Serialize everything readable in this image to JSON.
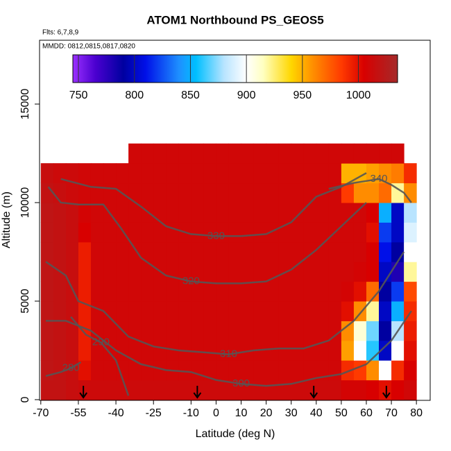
{
  "chart_data": {
    "type": "curtain",
    "title": "ATOM1 Northbound PS_GEOS5",
    "subtitle": "Flts: 6,7,8,9",
    "annotation": "MMDD: 0812,0815,0817,0820",
    "xlabel": "Latitude (deg N)",
    "ylabel": "Altitude (m)",
    "xlim": [
      -70.5,
      85.5
    ],
    "ylim": [
      0,
      18240
    ],
    "xticks": [
      -70,
      -55,
      -40,
      -25,
      -10,
      0,
      10,
      20,
      30,
      40,
      50,
      60,
      70,
      80
    ],
    "yticks": [
      0,
      5000,
      10000,
      15000
    ],
    "colorbar_lim": [
      745,
      1035
    ],
    "colorbar_ticks": [
      750,
      800,
      850,
      900,
      950,
      1000
    ],
    "colorscale": [
      [
        745,
        "#9b30ff"
      ],
      [
        765,
        "#4b00d0"
      ],
      [
        790,
        "#0000a0"
      ],
      [
        810,
        "#0010e8"
      ],
      [
        840,
        "#1e90ff"
      ],
      [
        855,
        "#00bfff"
      ],
      [
        880,
        "#b8e4ff"
      ],
      [
        900,
        "#ffffff"
      ],
      [
        915,
        "#ffffc0"
      ],
      [
        940,
        "#ffd700"
      ],
      [
        960,
        "#ff8c00"
      ],
      [
        985,
        "#ff3a00"
      ],
      [
        1005,
        "#d80000"
      ],
      [
        1035,
        "#a52a2a"
      ]
    ],
    "xbins": [
      -70,
      -65,
      -60,
      -55,
      -50,
      -45,
      -40,
      -35,
      -30,
      -25,
      -20,
      -15,
      -10,
      -5,
      0,
      5,
      10,
      15,
      20,
      25,
      30,
      35,
      40,
      45,
      50,
      55,
      60,
      65,
      70,
      75,
      80
    ],
    "ybins": [
      0,
      1000,
      2000,
      3000,
      4000,
      5000,
      6000,
      7000,
      8000,
      9000,
      10000,
      11000,
      12000,
      13000
    ],
    "z": [
      [
        1018,
        1018,
        1015,
        1012,
        1012,
        1012,
        1012,
        1012,
        1012,
        1012,
        1012,
        1012,
        1012,
        1012,
        1012,
        1012,
        1012,
        1012,
        1012,
        1012,
        1012,
        1012,
        1012,
        1012,
        1008,
        1008,
        1005,
        1000,
        1005,
        1010
      ],
      [
        1020,
        1018,
        1015,
        1000,
        1010,
        1010,
        1010,
        1010,
        1010,
        1010,
        1010,
        1010,
        1010,
        1010,
        1010,
        1010,
        1010,
        1010,
        1010,
        1010,
        1010,
        1010,
        1010,
        1010,
        990,
        985,
        960,
        900,
        990,
        1005
      ],
      [
        1020,
        1018,
        1015,
        995,
        1010,
        1010,
        1010,
        1010,
        1010,
        1010,
        1010,
        1010,
        1010,
        1010,
        1010,
        1010,
        1010,
        1010,
        1010,
        1010,
        1010,
        1010,
        1010,
        1010,
        955,
        900,
        860,
        800,
        900,
        1000
      ],
      [
        1020,
        1018,
        1015,
        995,
        1010,
        1010,
        1010,
        1010,
        1010,
        1010,
        1010,
        1010,
        1010,
        1010,
        1010,
        1010,
        1010,
        1010,
        1010,
        1010,
        1010,
        1010,
        1010,
        1010,
        960,
        910,
        870,
        790,
        880,
        995
      ],
      [
        1020,
        1018,
        1015,
        995,
        1010,
        1010,
        1010,
        1010,
        1010,
        1010,
        1010,
        1010,
        1010,
        1010,
        1010,
        1010,
        1010,
        1010,
        1010,
        1010,
        1010,
        1010,
        1010,
        1010,
        1000,
        960,
        920,
        800,
        850,
        990
      ],
      [
        1020,
        1018,
        1015,
        995,
        1010,
        1010,
        1010,
        1010,
        1010,
        1010,
        1010,
        1010,
        1010,
        1010,
        1010,
        1010,
        1010,
        1010,
        1010,
        1010,
        1010,
        1010,
        1010,
        1010,
        1008,
        1000,
        970,
        790,
        820,
        980
      ],
      [
        1020,
        1018,
        1015,
        995,
        1010,
        1010,
        1010,
        1010,
        1010,
        1010,
        1010,
        1010,
        1010,
        1010,
        1010,
        1010,
        1010,
        1010,
        1010,
        1010,
        1010,
        1010,
        1010,
        1010,
        1010,
        1008,
        1005,
        800,
        780,
        920
      ],
      [
        1020,
        1018,
        1015,
        995,
        1010,
        1010,
        1010,
        1010,
        1010,
        1010,
        1010,
        1010,
        1010,
        1010,
        1010,
        1010,
        1010,
        1010,
        1010,
        1010,
        1010,
        1010,
        1010,
        1010,
        1010,
        1010,
        1005,
        810,
        790,
        900
      ],
      [
        1020,
        1018,
        1015,
        1005,
        1010,
        1010,
        1010,
        1010,
        1010,
        1010,
        1010,
        1010,
        1010,
        1010,
        1010,
        1010,
        1010,
        1010,
        1010,
        1010,
        1010,
        1010,
        1010,
        1010,
        1010,
        1010,
        1000,
        820,
        800,
        890
      ],
      [
        1020,
        1018,
        1015,
        1008,
        1010,
        1010,
        1010,
        1010,
        1010,
        1010,
        1010,
        1010,
        1010,
        1010,
        1010,
        1010,
        1010,
        1010,
        1010,
        1010,
        1010,
        1010,
        1010,
        1010,
        1010,
        1010,
        1005,
        850,
        800,
        880
      ],
      [
        1018,
        1015,
        1012,
        1010,
        1010,
        1010,
        1010,
        1010,
        1010,
        1010,
        1010,
        1010,
        1010,
        1010,
        1010,
        1010,
        1010,
        1010,
        1010,
        1010,
        1010,
        1010,
        1010,
        1010,
        985,
        960,
        960,
        970,
        920,
        960
      ],
      [
        1015,
        1012,
        1012,
        1010,
        1010,
        1010,
        1010,
        1010,
        1010,
        1010,
        1010,
        1010,
        1010,
        1010,
        1010,
        1010,
        1010,
        1010,
        1010,
        1010,
        1010,
        1010,
        1010,
        1010,
        950,
        950,
        955,
        960,
        965,
        990
      ],
      [
        null,
        null,
        null,
        null,
        null,
        null,
        null,
        1010,
        1010,
        1010,
        1010,
        1010,
        1010,
        1010,
        1010,
        1010,
        1010,
        1010,
        1010,
        1010,
        1010,
        1010,
        1010,
        1010,
        1010,
        1010,
        1010,
        1010,
        1010,
        null
      ]
    ],
    "contours": [
      {
        "level": 280,
        "x": [
          -68,
          -62,
          -58,
          -54
        ],
        "y": [
          1200,
          1400,
          1600,
          1900
        ]
      },
      {
        "level": 290,
        "x": [
          -58,
          -52,
          -46,
          -40,
          -35
        ],
        "y": [
          4200,
          3300,
          2900,
          2000,
          200
        ]
      },
      {
        "level": 300,
        "x": [
          -68,
          -60,
          -50,
          -40,
          -30,
          -20,
          -10,
          0,
          10,
          20,
          30,
          40,
          50,
          60,
          70,
          78
        ],
        "y": [
          4000,
          4000,
          3500,
          2500,
          1800,
          1500,
          1400,
          1000,
          800,
          700,
          800,
          1100,
          1300,
          1800,
          3000,
          4500
        ]
      },
      {
        "level": 310,
        "x": [
          -68,
          -60,
          -55,
          -45,
          -35,
          -25,
          -15,
          -5,
          5,
          15,
          25,
          35,
          45,
          55,
          65,
          75
        ],
        "y": [
          7000,
          6300,
          5000,
          4500,
          3200,
          2700,
          2500,
          2400,
          2300,
          2500,
          2600,
          2600,
          3000,
          4000,
          5500,
          7500
        ]
      },
      {
        "level": 320,
        "x": [
          -67,
          -62,
          -55,
          -45,
          -38,
          -30,
          -20,
          -10,
          0,
          10,
          20,
          30,
          40,
          50,
          60
        ],
        "y": [
          10800,
          10000,
          9900,
          9900,
          8700,
          7200,
          6300,
          6000,
          5900,
          5900,
          6000,
          6600,
          7600,
          8800,
          10000
        ]
      },
      {
        "level": 330,
        "x": [
          -62,
          -50,
          -40,
          -30,
          -20,
          -10,
          0,
          10,
          20,
          30,
          40,
          50,
          60
        ],
        "y": [
          11200,
          10800,
          10700,
          9800,
          8800,
          8400,
          8300,
          8300,
          8400,
          9000,
          10300,
          10800,
          11500
        ]
      },
      {
        "level": 340,
        "x": [
          45,
          55,
          60,
          65,
          70,
          75,
          78
        ],
        "y": [
          10700,
          11000,
          11100,
          11200,
          10900,
          10500,
          10000
        ]
      }
    ],
    "flight_markers": [
      -53,
      -7.5,
      39,
      68
    ]
  }
}
